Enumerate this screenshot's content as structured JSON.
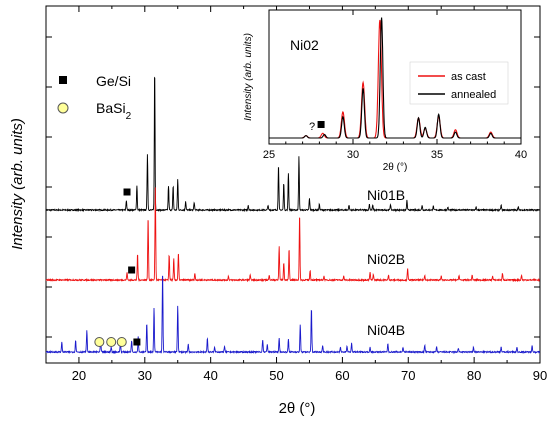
{
  "chart_data": [
    {
      "type": "line",
      "xlabel": "2θ (°)",
      "ylabel": "Intensity (arb. units)",
      "xlim": [
        15,
        90
      ],
      "x_ticks": [
        20,
        30,
        40,
        50,
        60,
        70,
        80,
        90
      ],
      "y_ticks_labeled": false,
      "colors": {
        "Ni01B": "#000000",
        "Ni02B": "#ee1111",
        "Ni04B": "#1a1acc"
      },
      "legend": [
        {
          "marker": "square",
          "label": "Ge/Si"
        },
        {
          "marker": "circle",
          "label": "BaSi",
          "subscript": "2"
        }
      ],
      "series": [
        {
          "name": "Ni01B",
          "offset": 2.0,
          "peaks": [
            [
              27.2,
              0.1
            ],
            [
              28.8,
              0.25
            ],
            [
              30.4,
              0.58
            ],
            [
              31.5,
              1.45
            ],
            [
              33.6,
              0.25
            ],
            [
              34.3,
              0.25
            ],
            [
              35.0,
              0.32
            ],
            [
              36.2,
              0.09
            ],
            [
              37.5,
              0.08
            ],
            [
              45.7,
              0.05
            ],
            [
              48.7,
              0.05
            ],
            [
              50.3,
              0.47
            ],
            [
              51.1,
              0.28
            ],
            [
              51.8,
              0.38
            ],
            [
              53.4,
              0.55
            ],
            [
              55.0,
              0.12
            ],
            [
              56.5,
              0.06
            ],
            [
              61.0,
              0.05
            ],
            [
              64.1,
              0.06
            ],
            [
              64.6,
              0.05
            ],
            [
              67.3,
              0.06
            ],
            [
              69.8,
              0.1
            ],
            [
              72.1,
              0.05
            ],
            [
              73.8,
              0.04
            ],
            [
              76.0,
              0.03
            ],
            [
              80.3,
              0.03
            ],
            [
              84.1,
              0.05
            ],
            [
              86.7,
              0.03
            ]
          ]
        },
        {
          "name": "Ni02B",
          "offset": 1.0,
          "peaks": [
            [
              27.3,
              0.08
            ],
            [
              28.9,
              0.27
            ],
            [
              30.5,
              0.65
            ],
            [
              31.6,
              0.95
            ],
            [
              33.7,
              0.26
            ],
            [
              34.4,
              0.22
            ],
            [
              35.1,
              0.28
            ],
            [
              37.6,
              0.07
            ],
            [
              42.7,
              0.04
            ],
            [
              46.0,
              0.05
            ],
            [
              48.9,
              0.05
            ],
            [
              50.4,
              0.35
            ],
            [
              51.1,
              0.18
            ],
            [
              51.9,
              0.32
            ],
            [
              53.5,
              0.68
            ],
            [
              55.1,
              0.1
            ],
            [
              57.2,
              0.04
            ],
            [
              60.2,
              0.04
            ],
            [
              64.2,
              0.08
            ],
            [
              64.7,
              0.06
            ],
            [
              67.0,
              0.05
            ],
            [
              69.9,
              0.12
            ],
            [
              72.5,
              0.05
            ],
            [
              75.0,
              0.04
            ],
            [
              77.7,
              0.05
            ],
            [
              79.7,
              0.05
            ],
            [
              82.8,
              0.04
            ],
            [
              84.3,
              0.07
            ],
            [
              87.2,
              0.05
            ]
          ]
        },
        {
          "name": "Ni04B",
          "offset": 0.0,
          "peaks": [
            [
              17.4,
              0.1
            ],
            [
              19.5,
              0.12
            ],
            [
              21.2,
              0.22
            ],
            [
              23.3,
              0.12
            ],
            [
              24.9,
              0.05
            ],
            [
              26.3,
              0.1
            ],
            [
              28.0,
              0.12
            ],
            [
              29.0,
              0.16
            ],
            [
              30.3,
              0.3
            ],
            [
              31.4,
              0.45
            ],
            [
              32.7,
              0.83
            ],
            [
              35.0,
              0.48
            ],
            [
              36.6,
              0.08
            ],
            [
              39.5,
              0.14
            ],
            [
              40.6,
              0.05
            ],
            [
              42.1,
              0.06
            ],
            [
              47.9,
              0.13
            ],
            [
              48.6,
              0.08
            ],
            [
              50.4,
              0.14
            ],
            [
              51.8,
              0.13
            ],
            [
              53.6,
              0.28
            ],
            [
              55.3,
              0.45
            ],
            [
              57.0,
              0.07
            ],
            [
              59.7,
              0.05
            ],
            [
              60.7,
              0.06
            ],
            [
              61.4,
              0.09
            ],
            [
              64.2,
              0.05
            ],
            [
              66.9,
              0.09
            ],
            [
              69.2,
              0.05
            ],
            [
              72.5,
              0.07
            ],
            [
              74.3,
              0.05
            ],
            [
              77.6,
              0.04
            ],
            [
              79.9,
              0.05
            ],
            [
              84.1,
              0.05
            ],
            [
              86.5,
              0.05
            ],
            [
              88.8,
              0.07
            ]
          ]
        }
      ],
      "annotations": [
        {
          "marker": "square",
          "series": "Ni01B",
          "x": 27.3
        },
        {
          "marker": "square",
          "series": "Ni02B",
          "x": 28.0
        },
        {
          "marker": "square",
          "series": "Ni04B",
          "x": 28.8
        },
        {
          "marker": "circle",
          "series": "Ni04B",
          "x": 23.1
        },
        {
          "marker": "circle",
          "series": "Ni04B",
          "x": 24.9
        },
        {
          "marker": "circle",
          "series": "Ni04B",
          "x": 26.5
        }
      ]
    },
    {
      "type": "line",
      "title": "Ni02",
      "xlabel": "2θ (°)",
      "ylabel": "Intensity (arb. units)",
      "xlim": [
        25,
        40
      ],
      "x_ticks": [
        25,
        30,
        35,
        40
      ],
      "y_ticks_labeled": false,
      "legend": [
        "as cast",
        "annealed"
      ],
      "legend_position": "right",
      "series": [
        {
          "name": "as cast",
          "color": "#ee1111",
          "peaks": [
            [
              27.2,
              0.02
            ],
            [
              28.2,
              0.04
            ],
            [
              29.4,
              0.22
            ],
            [
              30.6,
              0.47
            ],
            [
              31.6,
              1.0
            ],
            [
              33.9,
              0.17
            ],
            [
              34.3,
              0.08
            ],
            [
              35.1,
              0.18
            ],
            [
              36.1,
              0.07
            ],
            [
              38.2,
              0.05
            ]
          ]
        },
        {
          "name": "annealed",
          "color": "#000000",
          "peaks": [
            [
              27.2,
              0.02
            ],
            [
              28.3,
              0.03
            ],
            [
              29.4,
              0.18
            ],
            [
              30.6,
              0.42
            ],
            [
              31.7,
              1.02
            ],
            [
              33.9,
              0.17
            ],
            [
              34.3,
              0.09
            ],
            [
              35.1,
              0.2
            ],
            [
              36.1,
              0.05
            ],
            [
              38.2,
              0.04
            ]
          ]
        }
      ],
      "annotations": [
        {
          "text": "?",
          "x": 27.6
        },
        {
          "marker": "square",
          "x": 28.1
        }
      ]
    }
  ]
}
